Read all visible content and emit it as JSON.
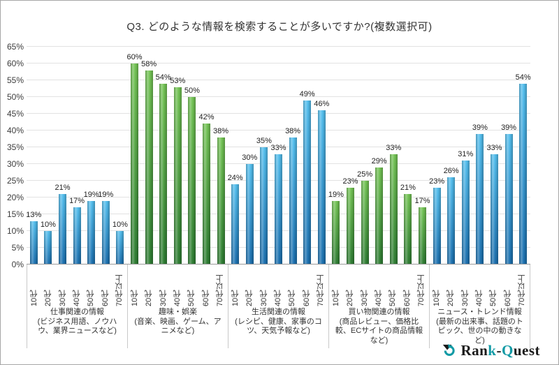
{
  "title": "Q3. どのような情報を検索することが多いですか?(複数選択可)",
  "chart_data": {
    "type": "bar",
    "title": "Q3. どのような情報を検索することが多いですか?(複数選択可)",
    "categories": [
      "10代",
      "20代",
      "30代",
      "40代",
      "50代",
      "60代",
      "70代以上"
    ],
    "groups": [
      {
        "label": "仕事関連の情報",
        "sublabel": "(ビジネス用語、ノウハウ、業界ニュースなど)",
        "color_key": "blue",
        "values": [
          13,
          10,
          21,
          17,
          19,
          19,
          10
        ]
      },
      {
        "label": "趣味・娯楽",
        "sublabel": "(音楽、映画、ゲーム、アニメなど)",
        "color_key": "green",
        "values": [
          60,
          58,
          54,
          53,
          50,
          42,
          38
        ]
      },
      {
        "label": "生活関連の情報",
        "sublabel": "(レシピ、健康、家事のコツ、天気予報など)",
        "color_key": "blue",
        "values": [
          24,
          30,
          35,
          33,
          38,
          49,
          46
        ]
      },
      {
        "label": "買い物関連の情報",
        "sublabel": "(商品レビュー、価格比較、ECサイトの商品情報など)",
        "color_key": "green",
        "values": [
          19,
          23,
          25,
          29,
          33,
          21,
          17
        ]
      },
      {
        "label": "ニュース・トレンド情報",
        "sublabel": "(最新の出来事、話題のトピック、世の中の動きなど)",
        "color_key": "blue",
        "values": [
          23,
          26,
          31,
          39,
          33,
          39,
          54
        ]
      }
    ],
    "ylim": [
      0,
      65
    ],
    "ytick_step": 5,
    "value_suffix": "%",
    "grid": true,
    "legend_position": "none",
    "colors": {
      "blue_top": "#54bfee",
      "blue_bottom": "#1b6fae",
      "green_top": "#74c455",
      "green_bottom": "#2e7d33"
    }
  },
  "logo": {
    "name": "Rank-Quest",
    "segments": [
      {
        "text": "Ran",
        "color": "#1a1a1a"
      },
      {
        "text": "k",
        "color": "#129aa5"
      },
      {
        "text": "-",
        "color": "#1a1a1a"
      },
      {
        "text": "Q",
        "color": "#129aa5"
      },
      {
        "text": "uest",
        "color": "#1a1a1a"
      }
    ],
    "icon_primary": "#1a1a1a",
    "icon_secondary": "#129aa5"
  }
}
